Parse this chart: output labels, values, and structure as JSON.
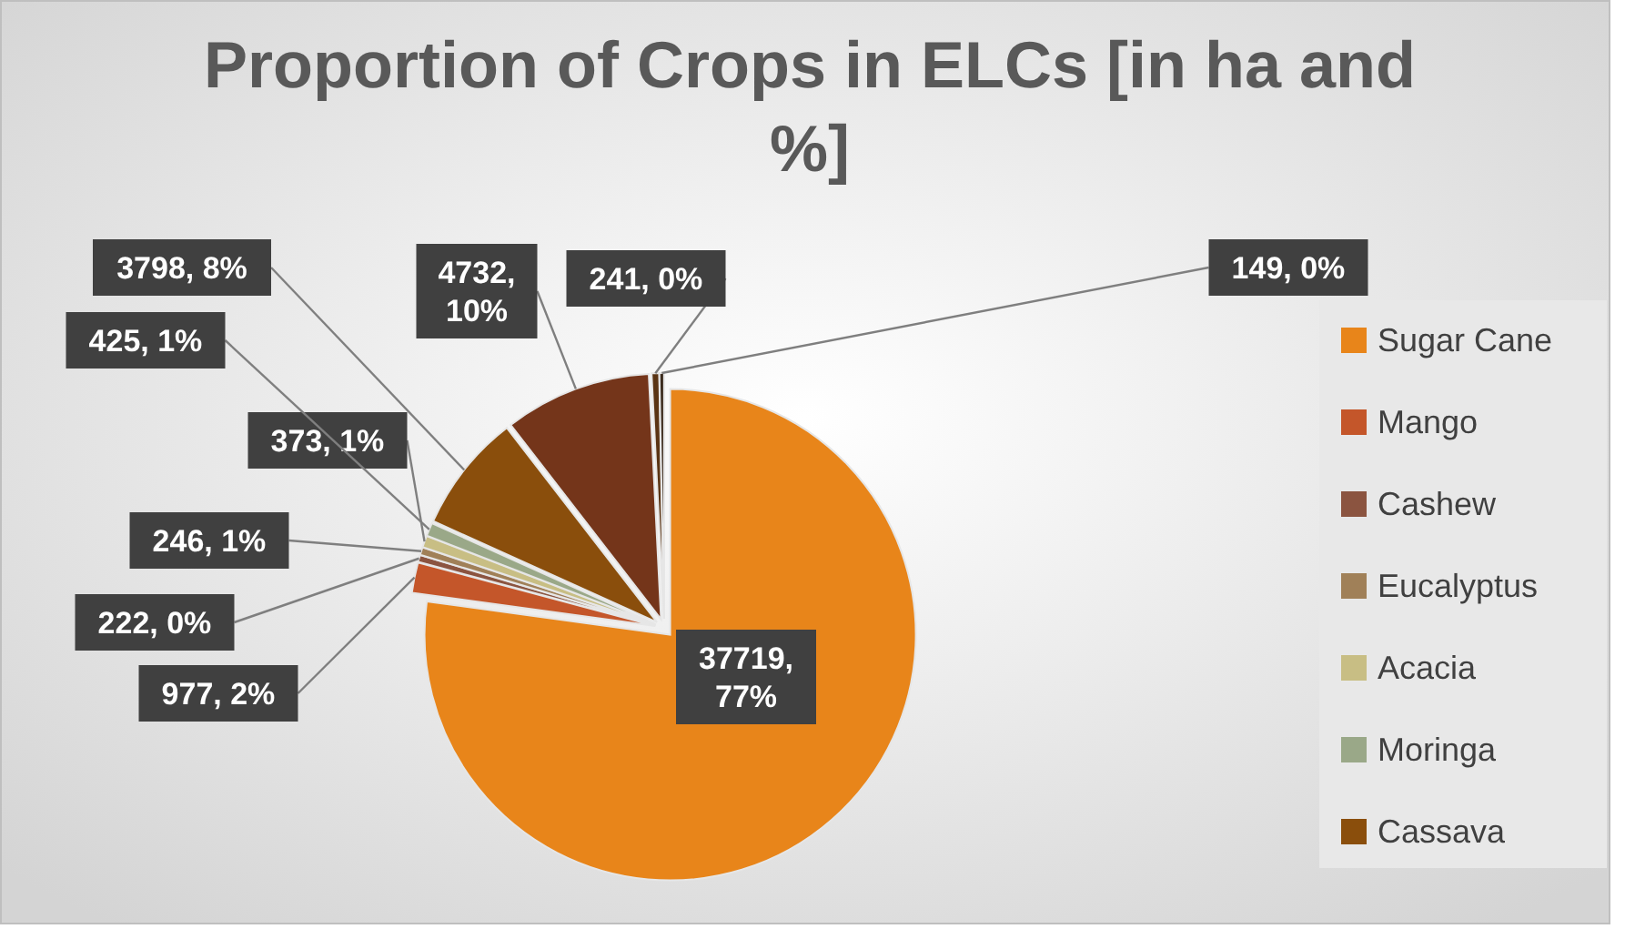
{
  "chart_data": {
    "type": "pie",
    "title": "Proportion of Crops in ELCs [in ha and %]",
    "categories": [
      "Sugar Cane",
      "Mango",
      "Cashew",
      "Eucalyptus",
      "Acacia",
      "Moringa",
      "Cassava",
      null,
      null,
      null
    ],
    "values": [
      37719,
      977,
      222,
      246,
      373,
      425,
      3798,
      4732,
      241,
      149
    ],
    "colors": [
      "#e8851a",
      "#c4562a",
      "#8b5440",
      "#a08058",
      "#c8be84",
      "#9aa888",
      "#8a4e0c",
      "#74351a",
      "#5a3414",
      "#3c2c1e"
    ],
    "value_labels": [
      "37719, 77%",
      "977, 2%",
      "222, 0%",
      "246, 1%",
      "373, 1%",
      "425, 1%",
      "3798, 8%",
      "4732, 10%",
      "241, 0%",
      "149, 0%"
    ],
    "legend": "right"
  }
}
